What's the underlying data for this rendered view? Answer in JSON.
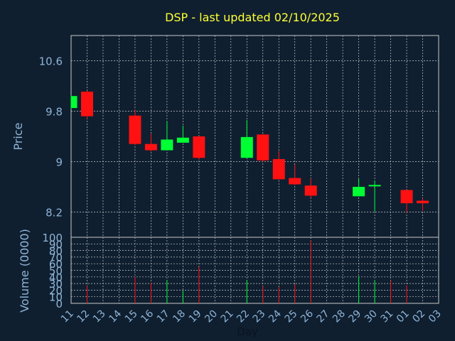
{
  "title": "DSP - last updated 02/10/2025",
  "colors": {
    "background": "#0f1f30",
    "axis_text": "#8fb4d6",
    "title": "#ffff33",
    "grid": "#c8c8c8",
    "up": "#00ff33",
    "down": "#ff1111"
  },
  "chart_data": [
    {
      "type": "candlestick",
      "ylabel": "Price",
      "ylim": [
        7.8,
        11.0
      ],
      "yticks": [
        "10.6",
        "9.8",
        "9",
        "8.2"
      ],
      "ytick_values": [
        10.6,
        9.8,
        9.0,
        8.2
      ],
      "grid": true,
      "x": [
        "11",
        "12",
        "13",
        "14",
        "15",
        "16",
        "17",
        "18",
        "19",
        "20",
        "21",
        "22",
        "23",
        "24",
        "25",
        "26",
        "27",
        "28",
        "29",
        "30",
        "31",
        "01",
        "02",
        "03"
      ],
      "candles": [
        {
          "day": "11",
          "open": 9.85,
          "high": 10.05,
          "low": 9.84,
          "close": 10.04
        },
        {
          "day": "12",
          "open": 10.11,
          "high": 10.12,
          "low": 9.68,
          "close": 9.72
        },
        {
          "day": "15",
          "open": 9.73,
          "high": 9.82,
          "low": 9.26,
          "close": 9.28
        },
        {
          "day": "16",
          "open": 9.28,
          "high": 9.44,
          "low": 9.16,
          "close": 9.18
        },
        {
          "day": "17",
          "open": 9.18,
          "high": 9.64,
          "low": 9.18,
          "close": 9.35
        },
        {
          "day": "18",
          "open": 9.3,
          "high": 9.57,
          "low": 9.3,
          "close": 9.38
        },
        {
          "day": "19",
          "open": 9.4,
          "high": 9.41,
          "low": 9.03,
          "close": 9.06
        },
        {
          "day": "22",
          "open": 9.06,
          "high": 9.66,
          "low": 9.06,
          "close": 9.39
        },
        {
          "day": "23",
          "open": 9.43,
          "high": 9.44,
          "low": 8.99,
          "close": 9.02
        },
        {
          "day": "24",
          "open": 9.04,
          "high": 9.17,
          "low": 8.71,
          "close": 8.72
        },
        {
          "day": "25",
          "open": 8.74,
          "high": 8.95,
          "low": 8.63,
          "close": 8.64
        },
        {
          "day": "26",
          "open": 8.62,
          "high": 8.73,
          "low": 8.43,
          "close": 8.46
        },
        {
          "day": "29",
          "open": 8.45,
          "high": 8.73,
          "low": 8.45,
          "close": 8.6
        },
        {
          "day": "30",
          "open": 8.62,
          "high": 8.7,
          "low": 8.21,
          "close": 8.63
        },
        {
          "day": "01",
          "open": 8.55,
          "high": 8.55,
          "low": 8.19,
          "close": 8.34
        },
        {
          "day": "02",
          "open": 8.38,
          "high": 8.42,
          "low": 8.22,
          "close": 8.34
        }
      ]
    },
    {
      "type": "bar",
      "ylabel": "Volume (0000)",
      "xlabel": "Day",
      "ylim": [
        0,
        100
      ],
      "yticks": [
        "0",
        "10",
        "20",
        "30",
        "40",
        "50",
        "60",
        "70",
        "80",
        "90",
        "100"
      ],
      "ytick_values": [
        0,
        10,
        20,
        30,
        40,
        50,
        60,
        70,
        80,
        90,
        100
      ],
      "categories": [
        "11",
        "12",
        "13",
        "14",
        "15",
        "16",
        "17",
        "18",
        "19",
        "20",
        "21",
        "22",
        "23",
        "24",
        "25",
        "26",
        "27",
        "28",
        "29",
        "30",
        "31",
        "01",
        "02",
        "03"
      ],
      "values": [
        0,
        26,
        0,
        0,
        40,
        31,
        35,
        19,
        55,
        0,
        0,
        35,
        26,
        25,
        29,
        95,
        0,
        0,
        41,
        35,
        34,
        27,
        0,
        0
      ],
      "bar_colors": [
        "",
        "down",
        "",
        "",
        "down",
        "down",
        "up",
        "up",
        "down",
        "",
        "",
        "up",
        "down",
        "down",
        "down",
        "down",
        "",
        "",
        "up",
        "up",
        "down",
        "down",
        "",
        ""
      ]
    }
  ]
}
